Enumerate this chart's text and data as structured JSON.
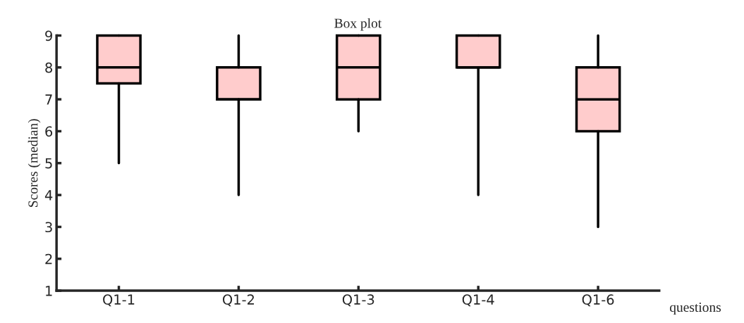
{
  "chart_data": {
    "type": "box",
    "title": "Box plot",
    "xlabel": "questions",
    "ylabel": "Scores (median)",
    "categories": [
      "Q1-1",
      "Q1-2",
      "Q1-3",
      "Q1-4",
      "Q1-6"
    ],
    "boxes": [
      {
        "low": 5,
        "q1": 7.5,
        "median": 8,
        "q3": 9,
        "high": 9
      },
      {
        "low": 4,
        "q1": 7,
        "median": 7,
        "q3": 8,
        "high": 9
      },
      {
        "low": 6,
        "q1": 7,
        "median": 8,
        "q3": 9,
        "high": 9
      },
      {
        "low": 4,
        "q1": 8,
        "median": 8,
        "q3": 9,
        "high": 9
      },
      {
        "low": 3,
        "q1": 6,
        "median": 7,
        "q3": 8,
        "high": 9
      }
    ],
    "color": "#ffcccc",
    "ylim": [
      1,
      9
    ],
    "yticks": [
      1,
      2,
      3,
      4,
      5,
      6,
      7,
      8,
      9
    ],
    "grid": false
  }
}
